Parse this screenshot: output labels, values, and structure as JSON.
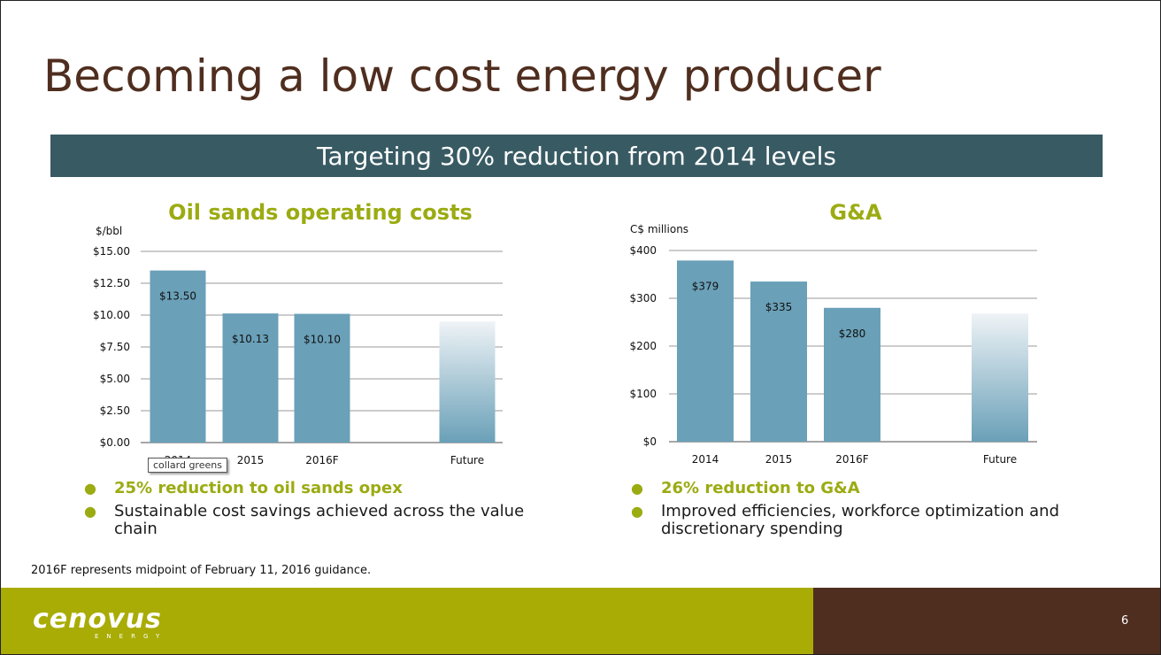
{
  "slide": {
    "title": "Becoming a low cost energy producer",
    "banner": "Targeting 30% reduction from 2014 levels",
    "footnote": "2016F represents midpoint of February 11, 2016 guidance.",
    "page_number": "6",
    "logo_text": "cenovus",
    "logo_subtext": "ENERGY",
    "tooltip": "collard greens"
  },
  "colors": {
    "title": "#4f2e1f",
    "banner": "#385a63",
    "accent_green": "#9bab12",
    "bar": "#6aa0b8",
    "footer_green": "#a8ac05",
    "footer_brown": "#4f2e1f"
  },
  "chart_data": [
    {
      "type": "bar",
      "title": "Oil sands operating costs",
      "ylabel": "$/bbl",
      "categories": [
        "2014",
        "2015",
        "2016F",
        "",
        "Future"
      ],
      "values": [
        13.5,
        10.13,
        10.1,
        null,
        9.5
      ],
      "value_labels": [
        "$13.50",
        "$10.13",
        "$10.10",
        "",
        ""
      ],
      "gradient_bar": "Future",
      "ylim": [
        0,
        15
      ],
      "yticks": [
        0,
        2.5,
        5,
        7.5,
        10,
        12.5,
        15
      ],
      "ytick_labels": [
        "$0.00",
        "$2.50",
        "$5.00",
        "$7.50",
        "$10.00",
        "$12.50",
        "$15.00"
      ],
      "grid": true
    },
    {
      "type": "bar",
      "title": "G&A",
      "ylabel": "C$ millions",
      "categories": [
        "2014",
        "2015",
        "2016F",
        "",
        "Future"
      ],
      "values": [
        379,
        335,
        280,
        null,
        268
      ],
      "value_labels": [
        "$379",
        "$335",
        "$280",
        "",
        ""
      ],
      "gradient_bar": "Future",
      "ylim": [
        0,
        400
      ],
      "yticks": [
        0,
        100,
        200,
        300,
        400
      ],
      "ytick_labels": [
        "$0",
        "$100",
        "$200",
        "$300",
        "$400"
      ],
      "grid": true
    }
  ],
  "left_bullets": [
    "25% reduction to oil sands opex",
    "Sustainable cost savings achieved across the value chain"
  ],
  "right_bullets": [
    "26% reduction to G&A",
    "Improved efficiencies, workforce optimization and discretionary spending"
  ]
}
